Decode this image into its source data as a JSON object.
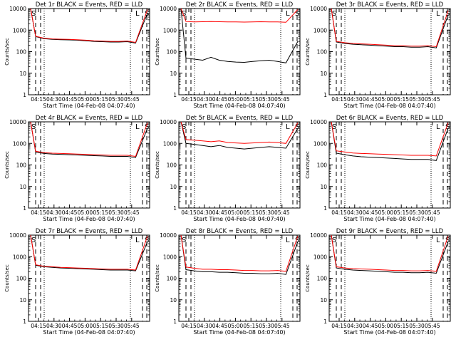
{
  "chart_data": [
    {
      "type": "line",
      "title": "Det 1r BLACK = Events, RED = LLD",
      "xlabel": "Start Time (04-Feb-08 04:07:40)",
      "ylabel": "Counts/sec",
      "ylim": [
        1,
        10000
      ],
      "yscale": "log",
      "x_ticks": [
        "04:15",
        "04:30",
        "04:45",
        "05:00",
        "05:15",
        "05:30",
        "05:45"
      ],
      "y_ticks": [
        "1",
        "10",
        "100",
        "1000",
        "10000"
      ],
      "markers": [
        "S",
        "L",
        "S"
      ],
      "series": [
        {
          "color": "#000000",
          "values": [
            10000,
            500,
            400,
            370,
            360,
            350,
            340,
            320,
            300,
            290,
            280,
            280,
            290,
            250,
            6000
          ]
        },
        {
          "color": "#ff0000",
          "values": [
            10000,
            520,
            420,
            390,
            380,
            370,
            360,
            340,
            320,
            310,
            300,
            300,
            310,
            270,
            9000
          ]
        }
      ]
    },
    {
      "type": "line",
      "title": "Det 2r BLACK = Events, RED = LLD",
      "xlabel": "Start Time (04-Feb-08 04:07:40)",
      "ylabel": "Counts/sec",
      "ylim": [
        1,
        10000
      ],
      "yscale": "log",
      "x_ticks": [
        "04:15",
        "04:30",
        "04:45",
        "05:00",
        "05:15",
        "05:30",
        "05:45"
      ],
      "y_ticks": [
        "1",
        "10",
        "100",
        "1000",
        "10000"
      ],
      "markers": [
        "S",
        "L",
        "S"
      ],
      "series": [
        {
          "color": "#000000",
          "values": [
            10000,
            50,
            45,
            40,
            55,
            40,
            35,
            33,
            32,
            35,
            38,
            40,
            35,
            30,
            300
          ]
        },
        {
          "color": "#ff0000",
          "values": [
            10000,
            2500,
            2400,
            2450,
            2500,
            2450,
            2400,
            2400,
            2350,
            2400,
            2450,
            2400,
            2400,
            2300,
            9000
          ]
        }
      ]
    },
    {
      "type": "line",
      "title": "Det 3r BLACK = Events, RED = LLD",
      "xlabel": "Start Time (04-Feb-08 04:07:40)",
      "ylabel": "Counts/sec",
      "ylim": [
        1,
        10000
      ],
      "yscale": "log",
      "x_ticks": [
        "04:15",
        "04:30",
        "04:45",
        "05:00",
        "05:15",
        "05:30",
        "05:45"
      ],
      "y_ticks": [
        "1",
        "10",
        "100",
        "1000",
        "10000"
      ],
      "markers": [
        "S",
        "L",
        "S"
      ],
      "series": [
        {
          "color": "#000000",
          "values": [
            10000,
            280,
            240,
            220,
            210,
            200,
            190,
            180,
            170,
            170,
            160,
            160,
            170,
            150,
            5000
          ]
        },
        {
          "color": "#ff0000",
          "values": [
            10000,
            300,
            260,
            240,
            230,
            220,
            210,
            200,
            190,
            190,
            180,
            180,
            190,
            170,
            8000
          ]
        }
      ]
    },
    {
      "type": "line",
      "title": "Det 4r BLACK = Events, RED = LLD",
      "xlabel": "Start Time (04-Feb-08 04:07:40)",
      "ylabel": "Counts/sec",
      "ylim": [
        1,
        10000
      ],
      "yscale": "log",
      "x_ticks": [
        "04:15",
        "04:30",
        "04:45",
        "05:00",
        "05:15",
        "05:30",
        "05:45"
      ],
      "y_ticks": [
        "1",
        "10",
        "100",
        "1000",
        "10000"
      ],
      "markers": [
        "S",
        "L",
        "S"
      ],
      "series": [
        {
          "color": "#000000",
          "values": [
            10000,
            400,
            340,
            320,
            310,
            300,
            290,
            280,
            270,
            260,
            250,
            250,
            250,
            220,
            5000
          ]
        },
        {
          "color": "#ff0000",
          "values": [
            10000,
            430,
            370,
            350,
            340,
            330,
            320,
            310,
            300,
            290,
            280,
            280,
            280,
            250,
            9000
          ]
        }
      ]
    },
    {
      "type": "line",
      "title": "Det 5r BLACK = Events, RED = LLD",
      "xlabel": "Start Time (04-Feb-08 04:07:40)",
      "ylabel": "Counts/sec",
      "ylim": [
        1,
        10000
      ],
      "yscale": "log",
      "x_ticks": [
        "04:15",
        "04:30",
        "04:45",
        "05:00",
        "05:15",
        "05:30",
        "05:45"
      ],
      "y_ticks": [
        "1",
        "10",
        "100",
        "1000",
        "10000"
      ],
      "markers": [
        "S",
        "L",
        "S"
      ],
      "series": [
        {
          "color": "#000000",
          "values": [
            10000,
            1000,
            900,
            800,
            700,
            800,
            650,
            600,
            550,
            600,
            650,
            700,
            650,
            600,
            5000
          ]
        },
        {
          "color": "#ff0000",
          "values": [
            10000,
            1500,
            1400,
            1300,
            1200,
            1300,
            1100,
            1050,
            1000,
            1050,
            1100,
            1150,
            1100,
            1000,
            9000
          ]
        }
      ]
    },
    {
      "type": "line",
      "title": "Det 6r BLACK = Events, RED = LLD",
      "xlabel": "Start Time (04-Feb-08 04:07:40)",
      "ylabel": "Counts/sec",
      "ylim": [
        1,
        10000
      ],
      "yscale": "log",
      "x_ticks": [
        "04:15",
        "04:30",
        "04:45",
        "05:00",
        "05:15",
        "05:30",
        "05:45"
      ],
      "y_ticks": [
        "1",
        "10",
        "100",
        "1000",
        "10000"
      ],
      "markers": [
        "S",
        "L",
        "S"
      ],
      "series": [
        {
          "color": "#000000",
          "values": [
            10000,
            350,
            300,
            260,
            240,
            230,
            220,
            210,
            200,
            190,
            180,
            180,
            180,
            160,
            5000
          ]
        },
        {
          "color": "#ff0000",
          "values": [
            10000,
            450,
            400,
            360,
            340,
            330,
            320,
            310,
            300,
            290,
            280,
            280,
            280,
            260,
            9000
          ]
        }
      ]
    },
    {
      "type": "line",
      "title": "Det 7r BLACK = Events, RED = LLD",
      "xlabel": "Start Time (04-Feb-08 04:07:40)",
      "ylabel": "Counts/sec",
      "ylim": [
        1,
        10000
      ],
      "yscale": "log",
      "x_ticks": [
        "04:15",
        "04:30",
        "04:45",
        "05:00",
        "05:15",
        "05:30",
        "05:45"
      ],
      "y_ticks": [
        "1",
        "10",
        "100",
        "1000",
        "10000"
      ],
      "markers": [
        "S",
        "L",
        "S"
      ],
      "series": [
        {
          "color": "#000000",
          "values": [
            10000,
            400,
            340,
            320,
            300,
            290,
            280,
            270,
            260,
            250,
            240,
            240,
            240,
            220,
            5000
          ]
        },
        {
          "color": "#ff0000",
          "values": [
            10000,
            420,
            360,
            340,
            320,
            310,
            300,
            290,
            280,
            270,
            260,
            260,
            260,
            240,
            9000
          ]
        }
      ]
    },
    {
      "type": "line",
      "title": "Det 8r BLACK = Events, RED = LLD",
      "xlabel": "Start Time (04-Feb-08 04:07:40)",
      "ylabel": "Counts/sec",
      "ylim": [
        1,
        10000
      ],
      "yscale": "log",
      "x_ticks": [
        "04:15",
        "04:30",
        "04:45",
        "05:00",
        "05:15",
        "05:30",
        "05:45"
      ],
      "y_ticks": [
        "1",
        "10",
        "100",
        "1000",
        "10000"
      ],
      "markers": [
        "S",
        "L",
        "S"
      ],
      "series": [
        {
          "color": "#000000",
          "values": [
            10000,
            250,
            220,
            200,
            200,
            190,
            190,
            180,
            170,
            170,
            160,
            160,
            170,
            150,
            5000
          ]
        },
        {
          "color": "#ff0000",
          "values": [
            10000,
            330,
            290,
            260,
            260,
            250,
            250,
            240,
            230,
            230,
            220,
            220,
            230,
            210,
            9000
          ]
        }
      ]
    },
    {
      "type": "line",
      "title": "Det 9r BLACK = Events, RED = LLD",
      "xlabel": "Start Time (04-Feb-08 04:07:40)",
      "ylabel": "Counts/sec",
      "ylim": [
        1,
        10000
      ],
      "yscale": "log",
      "x_ticks": [
        "04:15",
        "04:30",
        "04:45",
        "05:00",
        "05:15",
        "05:30",
        "05:45"
      ],
      "y_ticks": [
        "1",
        "10",
        "100",
        "1000",
        "10000"
      ],
      "markers": [
        "S",
        "L",
        "S"
      ],
      "series": [
        {
          "color": "#000000",
          "values": [
            10000,
            300,
            260,
            240,
            230,
            220,
            210,
            200,
            190,
            190,
            180,
            180,
            190,
            170,
            5000
          ]
        },
        {
          "color": "#ff0000",
          "values": [
            10000,
            340,
            300,
            280,
            270,
            260,
            250,
            240,
            230,
            230,
            220,
            220,
            230,
            210,
            9000
          ]
        }
      ]
    }
  ]
}
